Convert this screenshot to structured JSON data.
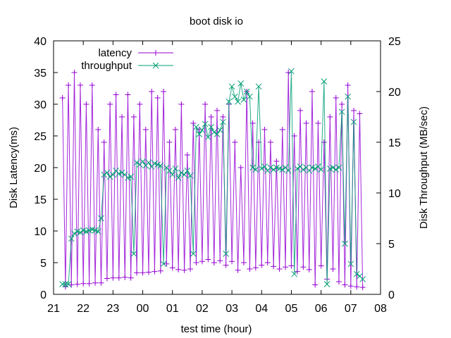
{
  "chart_data": {
    "type": "line",
    "title": "boot disk io",
    "xlabel": "test time (hour)",
    "ylabel": "Disk Latency(ms)",
    "y2label": "Disk Throughput (MB/sec)",
    "xlim": [
      21,
      32
    ],
    "ylim": [
      0,
      40
    ],
    "y2lim": [
      0,
      25
    ],
    "x_ticks": [
      21,
      22,
      23,
      24,
      25,
      26,
      27,
      28,
      29,
      30,
      31,
      32
    ],
    "x_tick_labels": [
      "21",
      "22",
      "23",
      "00",
      "01",
      "02",
      "03",
      "04",
      "05",
      "06",
      "07",
      "08"
    ],
    "y_ticks": [
      0,
      5,
      10,
      15,
      20,
      25,
      30,
      35,
      40
    ],
    "y_tick_labels": [
      "0",
      "5",
      "10",
      "15",
      "20",
      "25",
      "30",
      "35",
      "40"
    ],
    "y2_ticks": [
      0,
      5,
      10,
      15,
      20,
      25
    ],
    "y2_tick_labels": [
      "0",
      "5",
      "10",
      "15",
      "20",
      "25"
    ],
    "grid": false,
    "legend_position": "top-left",
    "series": [
      {
        "name": "latency",
        "axis": "y",
        "color": "#9400d3",
        "marker": "plus",
        "x_start": 21.3,
        "x_step": 0.1,
        "values": [
          31,
          1.2,
          33,
          1.5,
          35,
          1.6,
          33,
          1.7,
          30,
          1.7,
          33,
          1.8,
          26,
          1.8,
          24,
          2.5,
          30,
          2.6,
          31.5,
          2.6,
          28,
          2.7,
          31.5,
          2.6,
          28,
          3.4,
          30,
          3.4,
          26,
          3.5,
          32,
          3.6,
          31,
          3.7,
          32,
          4.8,
          24,
          4.2,
          26,
          3.9,
          30,
          3.8,
          22,
          4,
          27,
          5,
          26,
          5.2,
          30,
          5.5,
          28,
          5,
          29,
          5.3,
          28,
          4.6,
          30,
          5.2,
          24,
          3.8,
          20,
          5,
          32,
          4,
          27,
          4.2,
          24,
          4.6,
          26,
          5,
          24,
          4.4,
          21,
          4,
          26,
          4.3,
          35,
          4.5,
          25,
          3.6,
          29,
          4.3,
          27,
          3.9,
          32,
          1.5,
          27,
          4.5,
          24,
          2.4,
          28,
          4,
          31,
          2,
          30,
          1.5,
          33,
          1.3,
          29,
          1.2,
          28.5,
          1.1
        ]
      },
      {
        "name": "throughput",
        "axis": "y2",
        "color": "#009e73",
        "marker": "cross",
        "x_start": 21.3,
        "x_step": 0.1,
        "values": [
          1,
          1,
          1,
          5.5,
          6,
          6.2,
          6.1,
          6.3,
          6.2,
          6.3,
          6.4,
          6.3,
          6.2,
          7.5,
          11.8,
          12,
          11.6,
          11.8,
          12.2,
          11.9,
          12,
          11.8,
          11.5,
          11.6,
          4,
          13,
          12.8,
          13.1,
          12.7,
          13,
          12.6,
          12.9,
          12.8,
          12.7,
          3,
          12.5,
          12.2,
          11.8,
          12.4,
          11.5,
          12,
          11.8,
          12.2,
          11.7,
          4,
          16.5,
          15.8,
          16.2,
          16.8,
          15.5,
          16.5,
          16,
          15.8,
          16.2,
          17,
          4,
          19,
          20.5,
          19.5,
          19,
          20.8,
          19.2,
          20,
          19.5,
          12.5,
          12.3,
          20.5,
          12.4,
          12.6,
          12.2,
          12.5,
          12.3,
          12.5,
          12.4,
          12.3,
          12.5,
          12.2,
          22,
          2,
          12.4,
          12.6,
          12.3,
          12.5,
          12.2,
          12.5,
          12.4,
          12.6,
          12.3,
          21,
          1,
          12.4,
          12.5,
          12.3,
          12.5,
          18,
          5,
          19.5,
          3,
          17,
          2,
          1.8,
          1.5
        ]
      }
    ]
  }
}
